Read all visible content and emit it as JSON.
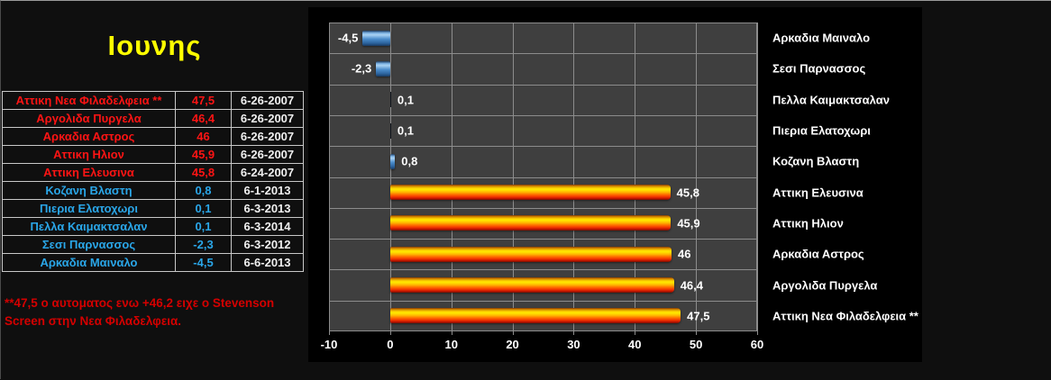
{
  "page": {
    "title": "Ιουνης",
    "background": "#0f0f0f"
  },
  "colors": {
    "title_text": "#ffff00",
    "hot_text": "#ff1414",
    "cold_text": "#2aa6e8",
    "date_text": "#f0f0f0",
    "note_text": "#d40000",
    "table_border": "#c8c8c8",
    "chart_bg": "#000000",
    "plot_bg": "#3f3f3f",
    "grid_color": "#8c8c8c",
    "axis_text": "#ffffff",
    "hot_bar": "#ff8a00",
    "cold_bar": "#4a8ccc"
  },
  "table": {
    "rows": [
      {
        "name": "Αττικη Νεα Φιλαδελφεια **",
        "value": "47,5",
        "date": "6-26-2007",
        "group": "hot"
      },
      {
        "name": "Αργολιδα Πυργελα",
        "value": "46,4",
        "date": "6-26-2007",
        "group": "hot"
      },
      {
        "name": "Αρκαδια Αστρος",
        "value": "46",
        "date": "6-26-2007",
        "group": "hot"
      },
      {
        "name": "Αττικη Ηλιον",
        "value": "45,9",
        "date": "6-26-2007",
        "group": "hot"
      },
      {
        "name": "Αττικη Ελευσινα",
        "value": "45,8",
        "date": "6-24-2007",
        "group": "hot"
      },
      {
        "name": "Κοζανη Βλαστη",
        "value": "0,8",
        "date": "6-1-2013",
        "group": "cold"
      },
      {
        "name": "Πιερια Ελατοχωρι",
        "value": "0,1",
        "date": "6-3-2013",
        "group": "cold"
      },
      {
        "name": "Πελλα Καιμακτσαλαν",
        "value": "0,1",
        "date": "6-3-2014",
        "group": "cold"
      },
      {
        "name": "Σεσι Παρνασσος",
        "value": "-2,3",
        "date": "6-3-2012",
        "group": "cold"
      },
      {
        "name": "Αρκαδια Μαιναλο",
        "value": "-4,5",
        "date": "6-6-2013",
        "group": "cold"
      }
    ]
  },
  "note": {
    "line1": "**47,5 ο αυτοματος ενω +46,2 ειχε ο Stevenson",
    "line2": "Screen στην Νεα Φιλαδελφεια."
  },
  "chart_data": {
    "type": "bar",
    "orientation": "horizontal",
    "title": "",
    "xlabel": "",
    "ylabel": "",
    "categories": [
      "Αρκαδια Μαιναλο",
      "Σεσι Παρνασσος",
      "Πελλα Καιμακτσαλαν",
      "Πιερια Ελατοχωρι",
      "Κοζανη Βλαστη",
      "Αττικη Ελευσινα",
      "Αττικη Ηλιον",
      "Αρκαδια Αστρος",
      "Αργολιδα Πυργελα",
      "Αττικη Νεα Φιλαδελφεια **"
    ],
    "values": [
      -4.5,
      -2.3,
      0.1,
      0.1,
      0.8,
      45.8,
      45.9,
      46,
      46.4,
      47.5
    ],
    "labels": [
      "-4,5",
      "-2,3",
      "0,1",
      "0,1",
      "0,8",
      "45,8",
      "45,9",
      "46",
      "46,4",
      "47,5"
    ],
    "groups": [
      "cold",
      "cold",
      "cold",
      "cold",
      "cold",
      "hot",
      "hot",
      "hot",
      "hot",
      "hot"
    ],
    "xlim": [
      -10,
      60
    ],
    "xticks": [
      -10,
      0,
      10,
      20,
      30,
      40,
      50,
      60
    ],
    "grid": true,
    "legend": "none",
    "category_labels_position": "right"
  }
}
